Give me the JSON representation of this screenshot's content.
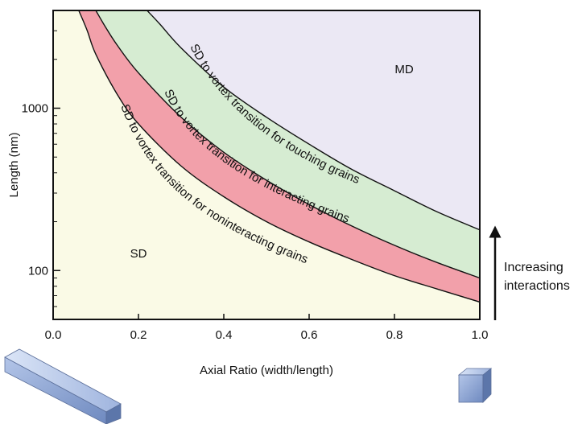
{
  "chart_data": {
    "type": "area",
    "xlabel": "Axial Ratio (width/length)",
    "ylabel": "Length (nm)",
    "xlim": [
      0.0,
      1.0
    ],
    "ylim": [
      50,
      4000
    ],
    "yscale": "log",
    "x_ticks": [
      0.0,
      0.2,
      0.4,
      0.6,
      0.8,
      1.0
    ],
    "x_tick_labels": [
      "0.0",
      "0.2",
      "0.4",
      "0.6",
      "0.8",
      "1.0"
    ],
    "y_ticks": [
      100,
      1000
    ],
    "y_tick_labels": [
      "100",
      "1000"
    ],
    "region_labels": {
      "sd": "SD",
      "md": "MD"
    },
    "series": [
      {
        "name": "SD to vortex transition for noninteracting grains",
        "x": [
          0.06,
          0.08,
          0.1,
          0.15,
          0.2,
          0.3,
          0.4,
          0.5,
          0.6,
          0.7,
          0.8,
          0.9,
          1.0
        ],
        "y": [
          4000,
          3000,
          2150,
          1220,
          800,
          440,
          285,
          200,
          150,
          117,
          93,
          77,
          64
        ]
      },
      {
        "name": "SD to vortex transition for interacting grains",
        "x": [
          0.1,
          0.12,
          0.15,
          0.2,
          0.3,
          0.4,
          0.5,
          0.6,
          0.7,
          0.8,
          0.9,
          1.0
        ],
        "y": [
          4000,
          3250,
          2450,
          1650,
          880,
          535,
          360,
          255,
          188,
          143,
          112,
          90
        ]
      },
      {
        "name": "SD to vortex transition for touching grains",
        "x": [
          0.22,
          0.25,
          0.3,
          0.4,
          0.5,
          0.6,
          0.7,
          0.8,
          0.9,
          1.0
        ],
        "y": [
          4000,
          3300,
          2350,
          1350,
          880,
          600,
          420,
          310,
          230,
          178
        ]
      }
    ],
    "fill_colors": {
      "sd": "#fafae6",
      "noninteracting": "#f2a0aa",
      "interacting": "#d6ecd2",
      "md": "#ebe8f4"
    },
    "annotations": {
      "interactions_line1": "Increasing",
      "interactions_line2": "interactions"
    },
    "illustrations": [
      "elongated-grain-icon",
      "equant-cube-grain-icon"
    ]
  }
}
